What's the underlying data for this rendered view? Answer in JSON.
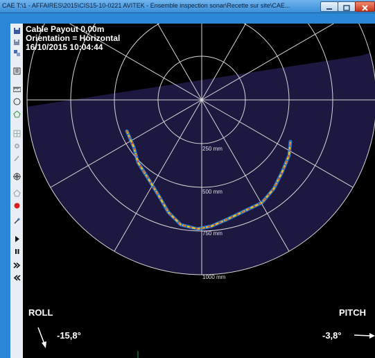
{
  "window": {
    "title": "CAE T:\\1 - AFFAIRES\\2015\\CIS15-10-0221 AVITEK - Ensemble inspection sonar\\Recette sur site\\CAE..."
  },
  "info": {
    "cable_payout": "Cable Payout 0,00m",
    "orientation": "Orientation = Horizontal",
    "datetime": "16/10/2015 10:04:44"
  },
  "sonar": {
    "range_labels": [
      "250 mm",
      "500 mm",
      "750 mm",
      "1000 mm"
    ]
  },
  "roll": {
    "label": "ROLL",
    "value": "-15,8°"
  },
  "pitch": {
    "label": "PITCH",
    "value": "-3,8°"
  },
  "toolbar": {
    "tools": [
      "save-icon",
      "save-as-icon",
      "export-icon",
      "report-icon",
      "ruler-icon",
      "circle-icon",
      "polygon-icon",
      "grid-icon",
      "settings-icon",
      "pen-icon",
      "target-icon",
      "polygon-select-icon",
      "record-icon",
      "magic-wand-icon",
      "play-icon",
      "pause-icon",
      "fast-forward-icon",
      "rewind-icon"
    ]
  },
  "colors": {
    "sonar_fill": "#1c1840",
    "grid": "#d8d8d8",
    "trace_hot": "#e8402a",
    "trace_cold": "#2a8ef0"
  }
}
